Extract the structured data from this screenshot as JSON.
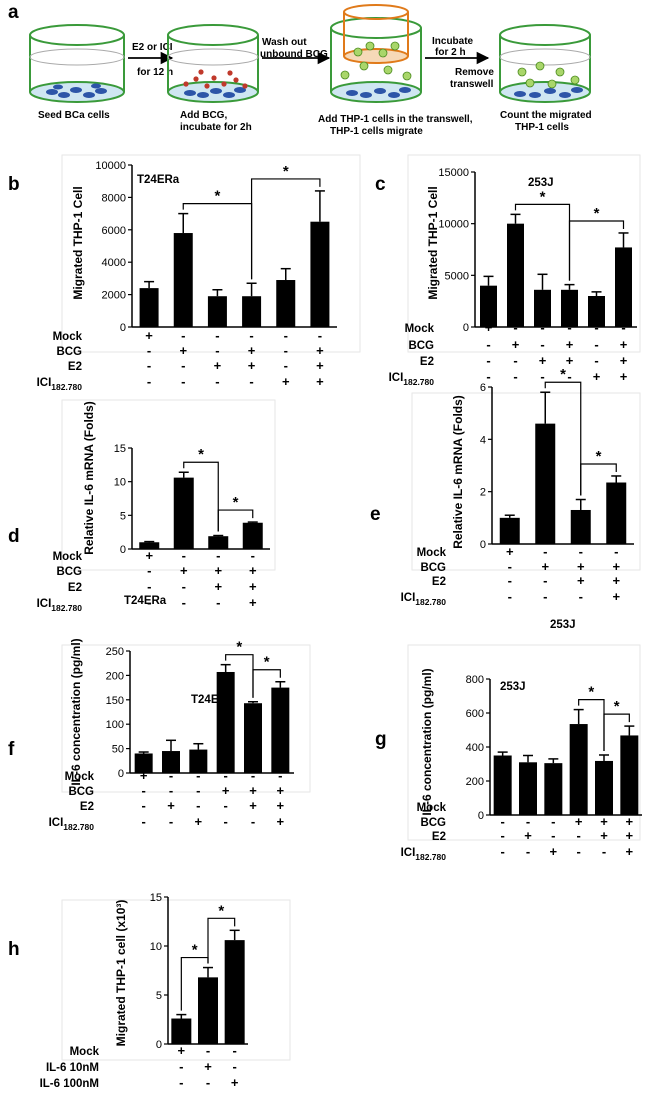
{
  "schematic": {
    "panel_label": "a",
    "arrow_1": "E2 or ICI",
    "arrow_1b": "for 12 h",
    "arrow_2": "Wash out",
    "arrow_2b": "unbound BCG",
    "arrow_3": "Incubate",
    "arrow_3b": "for 2 h",
    "arrow_4": "Remove",
    "arrow_4b": "transwell",
    "step_1": "Seed BCa cells",
    "step_2": "Add BCG,",
    "step_2b": "incubate for 2h",
    "step_3": "Add THP-1 cells in the transwell,",
    "step_3b": "THP-1 cells migrate",
    "step_4": "Count the migrated",
    "step_4b": "THP-1 cells"
  },
  "chart_data": [
    {
      "panel": "b",
      "type": "bar",
      "title": "T24ERa",
      "ylabel": "Migrated THP-1 Cell",
      "ylim": [
        0,
        10000
      ],
      "yticks": [
        "0",
        "2000",
        "4000",
        "6000",
        "8000",
        "10000"
      ],
      "values": [
        2400,
        5800,
        1900,
        1900,
        2900,
        6500
      ],
      "errors": [
        400,
        1200,
        400,
        800,
        700,
        1900
      ],
      "row_labels": [
        "Mock",
        "BCG",
        "E2",
        "ICI182.780"
      ],
      "signs": [
        [
          "+",
          "-",
          "-",
          "-",
          "-",
          "-"
        ],
        [
          "-",
          "+",
          "-",
          "+",
          "-",
          "+"
        ],
        [
          "-",
          "-",
          "+",
          "+",
          "-",
          "+"
        ],
        [
          "-",
          "-",
          "-",
          "-",
          "+",
          "+"
        ]
      ],
      "sig_brackets": [
        {
          "from": 1,
          "to": 3,
          "label": "*"
        },
        {
          "from": 3,
          "to": 5,
          "label": "*"
        }
      ]
    },
    {
      "panel": "c",
      "type": "bar",
      "title": "253J",
      "ylabel": "Migrated THP-1 Cell",
      "ylim": [
        0,
        15000
      ],
      "yticks": [
        "0",
        "5000",
        "10000",
        "15000"
      ],
      "values": [
        4000,
        10000,
        3600,
        3600,
        3000,
        7700
      ],
      "errors": [
        900,
        900,
        1500,
        500,
        400,
        1400
      ],
      "row_labels": [
        "Mock",
        "BCG",
        "E2",
        "ICI182.780"
      ],
      "signs": [
        [
          "+",
          "-",
          "-",
          "-",
          "-",
          "-"
        ],
        [
          "-",
          "+",
          "-",
          "+",
          "-",
          "+"
        ],
        [
          "-",
          "-",
          "+",
          "+",
          "-",
          "+"
        ],
        [
          "-",
          "-",
          "-",
          "-",
          "+",
          "+"
        ]
      ],
      "sig_brackets": [
        {
          "from": 1,
          "to": 3,
          "label": "*"
        },
        {
          "from": 3,
          "to": 5,
          "label": "*"
        }
      ]
    },
    {
      "panel": "d",
      "type": "bar",
      "title": "T24ERa",
      "ylabel": "Relative IL-6 mRNA (Folds)",
      "ylim": [
        0,
        15
      ],
      "yticks": [
        "0",
        "5",
        "10",
        "15"
      ],
      "values": [
        1.0,
        10.6,
        1.9,
        3.9
      ],
      "errors": [
        0.1,
        0.8,
        0.1,
        0.1
      ],
      "row_labels": [
        "Mock",
        "BCG",
        "E2",
        "ICI182.780"
      ],
      "signs": [
        [
          "+",
          "-",
          "-",
          "-"
        ],
        [
          "-",
          "+",
          "+",
          "+"
        ],
        [
          "-",
          "-",
          "+",
          "+"
        ],
        [
          "-",
          "-",
          "-",
          "+"
        ]
      ],
      "sig_brackets": [
        {
          "from": 1,
          "to": 2,
          "label": "*"
        },
        {
          "from": 2,
          "to": 3,
          "label": "*"
        }
      ]
    },
    {
      "panel": "e",
      "type": "bar",
      "title": "253J",
      "ylabel": "Relative IL-6 mRNA (Folds)",
      "ylim": [
        0,
        6
      ],
      "yticks": [
        "0",
        "2",
        "4",
        "6"
      ],
      "values": [
        1.0,
        4.6,
        1.3,
        2.35
      ],
      "errors": [
        0.1,
        1.2,
        0.4,
        0.25
      ],
      "row_labels": [
        "Mock",
        "BCG",
        "E2",
        "ICI182.780"
      ],
      "signs": [
        [
          "+",
          "-",
          "-",
          "-"
        ],
        [
          "-",
          "+",
          "+",
          "+"
        ],
        [
          "-",
          "-",
          "+",
          "+"
        ],
        [
          "-",
          "-",
          "-",
          "+"
        ]
      ],
      "sig_brackets": [
        {
          "from": 1,
          "to": 2,
          "label": "*"
        },
        {
          "from": 2,
          "to": 3,
          "label": "*"
        }
      ]
    },
    {
      "panel": "f",
      "type": "bar",
      "title": "T24ERa",
      "ylabel": "IL-6 concentration (pg/ml)",
      "ylim": [
        0,
        250
      ],
      "yticks": [
        "0",
        "50",
        "100",
        "150",
        "200",
        "250"
      ],
      "values": [
        40,
        45,
        48,
        207,
        143,
        175
      ],
      "errors": [
        3,
        22,
        12,
        15,
        3,
        12
      ],
      "row_labels": [
        "Mock",
        "BCG",
        "E2",
        "ICI182.780"
      ],
      "signs": [
        [
          "+",
          "-",
          "-",
          "-",
          "-",
          "-"
        ],
        [
          "-",
          "-",
          "-",
          "+",
          "+",
          "+"
        ],
        [
          "-",
          "+",
          "-",
          "-",
          "+",
          "+"
        ],
        [
          "-",
          "-",
          "+",
          "-",
          "-",
          "+"
        ]
      ],
      "sig_brackets": [
        {
          "from": 3,
          "to": 4,
          "label": "*"
        },
        {
          "from": 4,
          "to": 5,
          "label": "*"
        }
      ]
    },
    {
      "panel": "g",
      "type": "bar",
      "title": "253J",
      "ylabel": "IL-6 concentration (pg/ml)",
      "ylim": [
        0,
        800
      ],
      "yticks": [
        "0",
        "200",
        "400",
        "600",
        "800"
      ],
      "values": [
        350,
        310,
        305,
        535,
        318,
        468
      ],
      "errors": [
        20,
        40,
        25,
        85,
        35,
        55
      ],
      "row_labels": [
        "Mock",
        "BCG",
        "E2",
        "ICI182.780"
      ],
      "signs": [
        [
          "+",
          "-",
          "-",
          "-",
          "-",
          "-"
        ],
        [
          "-",
          "-",
          "-",
          "+",
          "+",
          "+"
        ],
        [
          "-",
          "+",
          "-",
          "-",
          "+",
          "+"
        ],
        [
          "-",
          "-",
          "+",
          "-",
          "-",
          "+"
        ]
      ],
      "sig_brackets": [
        {
          "from": 3,
          "to": 4,
          "label": "*"
        },
        {
          "from": 4,
          "to": 5,
          "label": "*"
        }
      ]
    },
    {
      "panel": "h",
      "type": "bar",
      "title": "",
      "ylabel": "Migrated THP-1 cell (x10³)",
      "ylim": [
        0,
        15
      ],
      "yticks": [
        "0",
        "5",
        "10",
        "15"
      ],
      "values": [
        2.6,
        6.8,
        10.6
      ],
      "errors": [
        0.4,
        1.0,
        1.0
      ],
      "row_labels": [
        "Mock",
        "IL-6 10nM",
        "IL-6 100nM"
      ],
      "signs": [
        [
          "+",
          "-",
          "-"
        ],
        [
          "-",
          "+",
          "-"
        ],
        [
          "-",
          "-",
          "+"
        ]
      ],
      "sig_brackets": [
        {
          "from": 0,
          "to": 1,
          "label": "*"
        },
        {
          "from": 1,
          "to": 2,
          "label": "*"
        }
      ]
    }
  ]
}
